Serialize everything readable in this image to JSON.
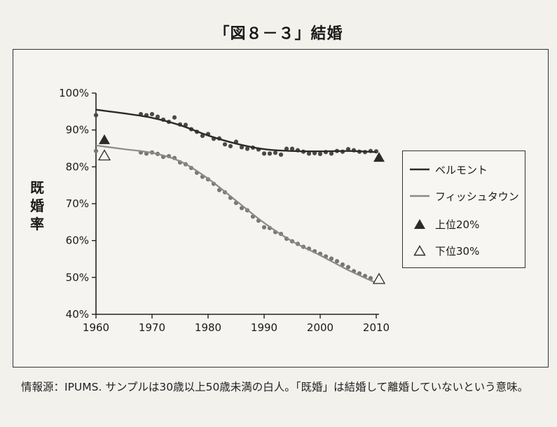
{
  "title": "「図８－３」結婚",
  "ylabel_chars": [
    "既",
    "婚",
    "率"
  ],
  "note": "情報源：IPUMS. サンプルは30歳以上50歳未満の白人。「既婚」は結婚して離婚していないという意味。",
  "legend": {
    "belmont": "ベルモント",
    "fishtown": "フィッシュタウン",
    "top20": "上位20%",
    "bottom30": "下位30%"
  },
  "colors": {
    "belmont": "#2b2b2b",
    "fishtown": "#8a8a8a",
    "points": "#6a6a6a"
  },
  "chart_data": {
    "type": "line",
    "title": "「図８－３」結婚",
    "ylabel": "既婚率",
    "xlabel": "",
    "xlim": [
      1960,
      2010
    ],
    "ylim": [
      40,
      100
    ],
    "x_ticks": [
      "1960",
      "1970",
      "1980",
      "1990",
      "2000",
      "2010"
    ],
    "y_ticks": [
      "40%",
      "50%",
      "60%",
      "70%",
      "80%",
      "90%",
      "100%"
    ],
    "grid": false,
    "legend_position": "right",
    "series": [
      {
        "name": "ベルモント",
        "style": "trend-line",
        "x": [
          1960,
          1965,
          1970,
          1975,
          1980,
          1985,
          1990,
          1995,
          2000,
          2005,
          2010
        ],
        "y": [
          95.5,
          94.5,
          93.3,
          91.3,
          88.5,
          86.3,
          84.8,
          84.3,
          84.2,
          84.3,
          84.0
        ]
      },
      {
        "name": "ベルモント",
        "style": "points",
        "x": [
          1960,
          1968,
          1969,
          1970,
          1971,
          1972,
          1973,
          1974,
          1975,
          1976,
          1977,
          1978,
          1979,
          1980,
          1981,
          1982,
          1983,
          1984,
          1985,
          1986,
          1987,
          1988,
          1989,
          1990,
          1991,
          1992,
          1993,
          1994,
          1995,
          1996,
          1997,
          1998,
          1999,
          2000,
          2001,
          2002,
          2003,
          2004,
          2005,
          2006,
          2007,
          2008,
          2009,
          2010
        ],
        "y": [
          94.0,
          94.3,
          94.0,
          94.3,
          93.6,
          92.8,
          92.2,
          93.4,
          91.5,
          91.4,
          90.2,
          89.5,
          88.4,
          88.9,
          87.6,
          87.7,
          86.1,
          85.6,
          86.8,
          85.3,
          84.9,
          85.2,
          84.7,
          83.6,
          83.6,
          83.8,
          83.3,
          84.9,
          84.9,
          84.5,
          84.1,
          83.6,
          83.7,
          83.5,
          84.0,
          83.6,
          84.3,
          84.1,
          84.8,
          84.5,
          84.1,
          84.0,
          84.3,
          84.2
        ]
      },
      {
        "name": "フィッシュタウン",
        "style": "trend-line",
        "x": [
          1960,
          1965,
          1970,
          1975,
          1980,
          1985,
          1990,
          1995,
          2000,
          2005,
          2010
        ],
        "y": [
          85.8,
          84.8,
          83.8,
          81.5,
          76.8,
          70.8,
          64.8,
          59.8,
          56.0,
          52.0,
          48.5
        ]
      },
      {
        "name": "フィッシュタウン",
        "style": "points",
        "x": [
          1960,
          1968,
          1969,
          1970,
          1971,
          1972,
          1973,
          1974,
          1975,
          1976,
          1977,
          1978,
          1979,
          1980,
          1981,
          1982,
          1983,
          1984,
          1985,
          1986,
          1987,
          1988,
          1989,
          1990,
          1991,
          1992,
          1993,
          1994,
          1995,
          1996,
          1997,
          1998,
          1999,
          2000,
          2001,
          2002,
          2003,
          2004,
          2005,
          2006,
          2007,
          2008,
          2009,
          2010
        ],
        "y": [
          84.3,
          83.9,
          83.6,
          83.9,
          83.5,
          82.7,
          82.9,
          82.4,
          81.2,
          80.7,
          79.7,
          78.4,
          77.3,
          76.6,
          75.4,
          73.7,
          73.1,
          71.6,
          70.2,
          68.8,
          68.2,
          66.5,
          65.4,
          63.6,
          63.4,
          62.3,
          61.8,
          60.5,
          59.8,
          59.1,
          58.3,
          57.8,
          57.1,
          56.4,
          55.7,
          55.1,
          54.4,
          53.5,
          52.8,
          51.7,
          51.1,
          50.4,
          49.8,
          48.8
        ]
      },
      {
        "name": "上位20%",
        "style": "marker-filled-triangle",
        "x": [
          1961,
          2010
        ],
        "y": [
          87.3,
          82.5
        ]
      },
      {
        "name": "下位30%",
        "style": "marker-open-triangle",
        "x": [
          1961,
          2010
        ],
        "y": [
          83.0,
          49.5
        ]
      }
    ]
  }
}
